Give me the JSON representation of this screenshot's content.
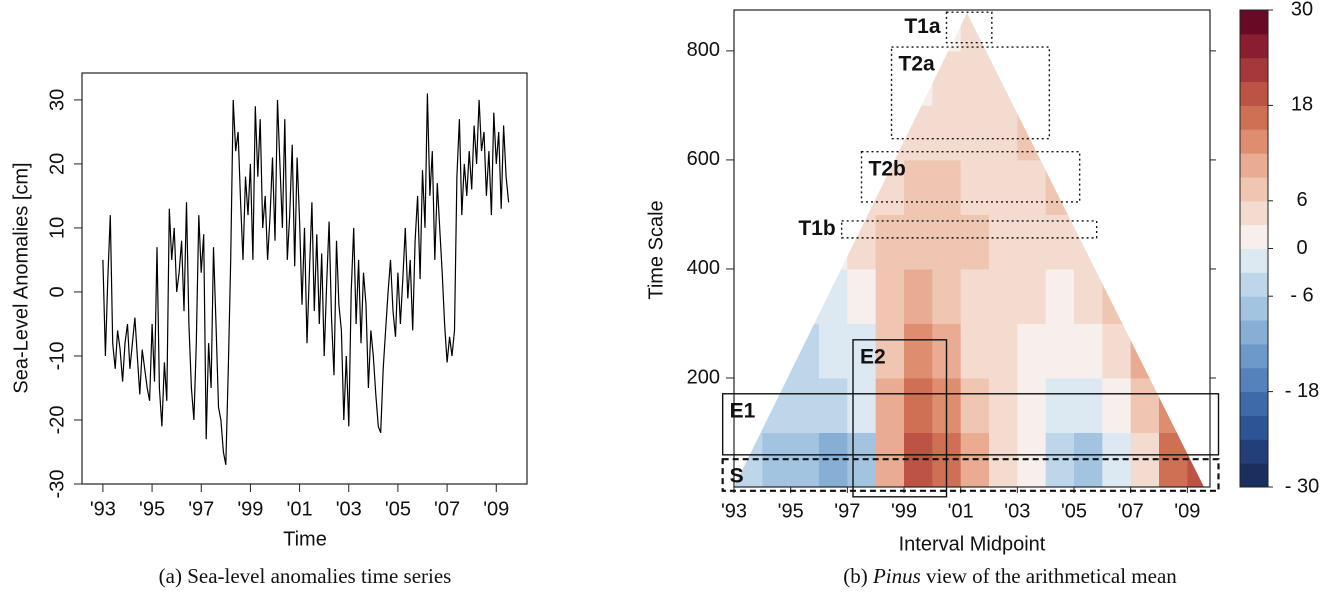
{
  "chart_data": [
    {
      "type": "line",
      "x_label": "Time",
      "y_label": "Sea-Level Anomalies [cm]",
      "caption": "(a) Sea-level anomalies time series",
      "color": "#000000",
      "xlim": [
        1992.15,
        2010.25
      ],
      "ylim": [
        -30,
        34.2
      ],
      "xticks": [
        {
          "value": 1993,
          "label": "'93"
        },
        {
          "value": 1995,
          "label": "'95"
        },
        {
          "value": 1997,
          "label": "'97"
        },
        {
          "value": 1999,
          "label": "'99"
        },
        {
          "value": 2001,
          "label": "'01"
        },
        {
          "value": 2003,
          "label": "'03"
        },
        {
          "value": 2005,
          "label": "'05"
        },
        {
          "value": 2007,
          "label": "'07"
        },
        {
          "value": 2009,
          "label": "'09"
        }
      ],
      "yticks": [
        -30,
        -20,
        -10,
        0,
        10,
        20,
        30
      ],
      "x": [
        1993.0,
        1993.1,
        1993.2,
        1993.3,
        1993.4,
        1993.5,
        1993.6,
        1993.7,
        1993.8,
        1993.9,
        1994.0,
        1994.1,
        1994.2,
        1994.3,
        1994.4,
        1994.5,
        1994.6,
        1994.7,
        1994.8,
        1994.9,
        1995.0,
        1995.1,
        1995.2,
        1995.3,
        1995.4,
        1995.5,
        1995.6,
        1995.7,
        1995.8,
        1995.9,
        1996.0,
        1996.1,
        1996.2,
        1996.3,
        1996.4,
        1996.5,
        1996.6,
        1996.7,
        1996.8,
        1996.9,
        1997.0,
        1997.1,
        1997.2,
        1997.3,
        1997.4,
        1997.5,
        1997.6,
        1997.7,
        1997.8,
        1997.9,
        1998.0,
        1998.1,
        1998.2,
        1998.3,
        1998.4,
        1998.5,
        1998.6,
        1998.7,
        1998.8,
        1998.9,
        1999.0,
        1999.1,
        1999.2,
        1999.3,
        1999.4,
        1999.5,
        1999.6,
        1999.7,
        1999.8,
        1999.9,
        2000.0,
        2000.1,
        2000.2,
        2000.3,
        2000.4,
        2000.5,
        2000.6,
        2000.7,
        2000.8,
        2000.9,
        2001.0,
        2001.1,
        2001.2,
        2001.3,
        2001.4,
        2001.5,
        2001.6,
        2001.7,
        2001.8,
        2001.9,
        2002.0,
        2002.1,
        2002.2,
        2002.3,
        2002.4,
        2002.5,
        2002.6,
        2002.7,
        2002.8,
        2002.9,
        2003.0,
        2003.1,
        2003.2,
        2003.3,
        2003.4,
        2003.5,
        2003.6,
        2003.7,
        2003.8,
        2003.9,
        2004.0,
        2004.1,
        2004.2,
        2004.3,
        2004.4,
        2004.5,
        2004.6,
        2004.7,
        2004.8,
        2004.9,
        2005.0,
        2005.1,
        2005.2,
        2005.3,
        2005.4,
        2005.5,
        2005.6,
        2005.7,
        2005.8,
        2005.9,
        2006.0,
        2006.1,
        2006.2,
        2006.3,
        2006.4,
        2006.5,
        2006.6,
        2006.7,
        2006.8,
        2006.9,
        2007.0,
        2007.1,
        2007.2,
        2007.3,
        2007.4,
        2007.5,
        2007.6,
        2007.7,
        2007.8,
        2007.9,
        2008.0,
        2008.1,
        2008.2,
        2008.3,
        2008.4,
        2008.5,
        2008.6,
        2008.7,
        2008.8,
        2008.9,
        2009.0,
        2009.1,
        2009.2,
        2009.3,
        2009.4,
        2009.5
      ],
      "values": [
        5,
        -10,
        2,
        12,
        -8,
        -12,
        -6,
        -9,
        -14,
        -8,
        -5,
        -12,
        -8,
        -4,
        -10,
        -16,
        -9,
        -12,
        -15,
        -17,
        -5,
        -14,
        7,
        -15,
        -21,
        -11,
        -17,
        13,
        5,
        10,
        0,
        3,
        8,
        -3,
        14,
        -5,
        -15,
        -20,
        -8,
        12,
        3,
        9,
        -23,
        -8,
        -15,
        7,
        -5,
        -18,
        -20,
        -25,
        -27,
        -12,
        5,
        30,
        22,
        25,
        14,
        5,
        18,
        12,
        20,
        5,
        29,
        18,
        27,
        10,
        15,
        5,
        12,
        21,
        8,
        30,
        20,
        10,
        27,
        5,
        12,
        23,
        4,
        21,
        11,
        -2,
        10,
        -8,
        3,
        14,
        -3,
        9,
        -5,
        6,
        -10,
        1,
        11,
        -4,
        -13,
        8,
        -2,
        -6,
        -20,
        -10,
        -21,
        0,
        10,
        -5,
        5,
        -8,
        3,
        -2,
        -15,
        -6,
        -10,
        -16,
        -21,
        -22,
        -12,
        -6,
        0,
        5,
        -3,
        -7,
        3,
        -5,
        2,
        10,
        -1,
        5,
        -6,
        8,
        15,
        2,
        19,
        10,
        31,
        15,
        22,
        5,
        17,
        10,
        3,
        -5,
        -11,
        -7,
        -10,
        -6,
        18,
        27,
        12,
        20,
        15,
        22,
        16,
        26,
        20,
        30,
        22,
        25,
        15,
        22,
        12,
        28,
        20,
        25,
        13,
        26,
        18,
        14
      ]
    },
    {
      "type": "heatmap",
      "x_label": "Interval Midpoint",
      "y_label": "Time Scale",
      "caption": {
        "prefix": "(b)",
        "emphasis": "Pinus",
        "rest": "view of the arithmetical mean"
      },
      "xlim": [
        1993,
        2009.8
      ],
      "ylim": [
        0,
        875
      ],
      "xticks": [
        {
          "value": 1993,
          "label": "'93"
        },
        {
          "value": 1995,
          "label": "'95"
        },
        {
          "value": 1997,
          "label": "'97"
        },
        {
          "value": 1999,
          "label": "'99"
        },
        {
          "value": 2001,
          "label": "'01"
        },
        {
          "value": 2003,
          "label": "'03"
        },
        {
          "value": 2005,
          "label": "'05"
        },
        {
          "value": 2007,
          "label": "'07"
        },
        {
          "value": 2009,
          "label": "'09"
        }
      ],
      "yticks": [
        200,
        400,
        600,
        800
      ],
      "x": [
        1993.5,
        1994.5,
        1995.5,
        1996.5,
        1997.5,
        1998.5,
        1999.5,
        2000.5,
        2001.5,
        2002.5,
        2003.5,
        2004.5,
        2005.5,
        2006.5,
        2007.5,
        2008.5,
        2009.5
      ],
      "y": [
        50,
        150,
        250,
        350,
        450,
        550,
        650,
        750,
        850
      ],
      "z": [
        [
          -6,
          -9,
          -8,
          -10,
          -8,
          10,
          18,
          15,
          9,
          5,
          2,
          -6,
          -8,
          -3,
          4,
          16,
          18
        ],
        [
          -4,
          -6,
          -6,
          -6,
          -3,
          9,
          15,
          14,
          6,
          3,
          1,
          -3,
          -3,
          2,
          8,
          14,
          null
        ],
        [
          null,
          -4,
          -4,
          -3,
          -1,
          8,
          12,
          10,
          5,
          3,
          2,
          0,
          1,
          5,
          9,
          null,
          null
        ],
        [
          null,
          null,
          -3,
          -2,
          1,
          7,
          9,
          8,
          5,
          4,
          3,
          2,
          3,
          7,
          null,
          null,
          null
        ],
        [
          null,
          null,
          null,
          0,
          3,
          6,
          7,
          7,
          6,
          5,
          4,
          4,
          5,
          null,
          null,
          null,
          null
        ],
        [
          null,
          null,
          null,
          null,
          3,
          5,
          6,
          6,
          5,
          5,
          5,
          6,
          null,
          null,
          null,
          null,
          null
        ],
        [
          null,
          null,
          null,
          null,
          null,
          4,
          5,
          5,
          4,
          5,
          6,
          null,
          null,
          null,
          null,
          null,
          null
        ],
        [
          null,
          null,
          null,
          null,
          null,
          null,
          2,
          3,
          4,
          4,
          null,
          null,
          null,
          null,
          null,
          null,
          null
        ],
        [
          null,
          null,
          null,
          null,
          null,
          null,
          null,
          1,
          3,
          null,
          null,
          null,
          null,
          null,
          null,
          null,
          null
        ]
      ],
      "zlim": [
        -30,
        30
      ],
      "colors": [
        "#1b2f5e",
        "#233f7a",
        "#2d5596",
        "#3f6aaa",
        "#5582ba",
        "#6d99c8",
        "#87afd5",
        "#a3c4e1",
        "#bed6ea",
        "#dce8f2",
        "#f7efec",
        "#f3dbd0",
        "#efc6b2",
        "#e9ac92",
        "#de8e6e",
        "#cf7055",
        "#bd5345",
        "#a6373a",
        "#8a1d30",
        "#680a25"
      ],
      "colorbar_ticks": [
        30,
        18,
        6,
        0,
        {
          "value": -6,
          "label": "- 6"
        },
        {
          "value": -18,
          "label": "- 18"
        },
        {
          "value": -30,
          "label": "- 30"
        }
      ],
      "regions": [
        {
          "label": "T1a",
          "x": [
            2000.5,
            2002.1
          ],
          "y": [
            815,
            871
          ],
          "line": "dotted",
          "label_side": "outside"
        },
        {
          "label": "T2a",
          "x": [
            1998.56,
            2004.13
          ],
          "y": [
            639,
            807
          ],
          "line": "dotted",
          "label_side": "inside"
        },
        {
          "label": "T2b",
          "x": [
            1997.5,
            2005.2
          ],
          "y": [
            523,
            615
          ],
          "line": "dotted",
          "label_side": "inside"
        },
        {
          "label": "T1b",
          "x": [
            1996.8,
            2005.8
          ],
          "y": [
            457,
            488
          ],
          "line": "dotted",
          "label_side": "outside"
        },
        {
          "label": "E1",
          "x": [
            1992.6,
            2010.1
          ],
          "y": [
            59,
            171
          ],
          "line": "solid",
          "label_side": "inside"
        },
        {
          "label": "E2",
          "x": [
            1997.2,
            2000.5
          ],
          "y": [
            -18,
            270
          ],
          "line": "solid",
          "label_side": "inside"
        },
        {
          "label": "S",
          "x": [
            1992.6,
            2010.1
          ],
          "y": [
            -7,
            51
          ],
          "line": "dashed",
          "label_side": "inside"
        }
      ]
    }
  ]
}
